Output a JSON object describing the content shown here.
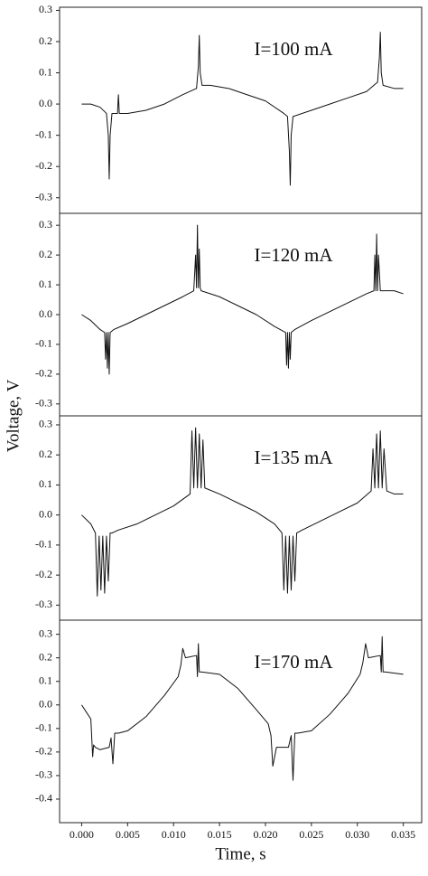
{
  "chart_data": [
    {
      "type": "line",
      "annotation": "I=100 mA",
      "ylabel": "Voltage, V",
      "color": "#111111",
      "xlim": [
        -0.0024,
        0.037
      ],
      "ylim": [
        -0.35,
        0.31
      ],
      "yticks": [
        0.3,
        0.2,
        0.1,
        {
          "value": 0,
          "label": "0.0"
        },
        -0.1,
        -0.2,
        -0.3
      ],
      "x": [
        0,
        0.001,
        0.002,
        0.0027,
        0.0029,
        0.003,
        0.0031,
        0.0033,
        0.0039,
        0.004,
        0.0041,
        0.005,
        0.007,
        0.009,
        0.011,
        0.0125,
        0.0127,
        0.0128,
        0.0129,
        0.0131,
        0.014,
        0.016,
        0.018,
        0.02,
        0.022,
        0.0224,
        0.0226,
        0.0227,
        0.0228,
        0.023,
        0.025,
        0.027,
        0.029,
        0.031,
        0.0322,
        0.0324,
        0.0325,
        0.0326,
        0.0328,
        0.034,
        0.035
      ],
      "values": [
        0.0,
        0.0,
        -0.01,
        -0.03,
        -0.1,
        -0.24,
        -0.1,
        -0.03,
        -0.03,
        0.03,
        -0.03,
        -0.03,
        -0.02,
        0.0,
        0.03,
        0.05,
        0.12,
        0.22,
        0.1,
        0.06,
        0.06,
        0.05,
        0.03,
        0.01,
        -0.03,
        -0.04,
        -0.15,
        -0.26,
        -0.1,
        -0.04,
        -0.02,
        0.0,
        0.02,
        0.04,
        0.07,
        0.15,
        0.23,
        0.1,
        0.06,
        0.05,
        0.05
      ]
    },
    {
      "type": "line",
      "annotation": "I=120 mA",
      "color": "#111111",
      "xlim": [
        -0.0024,
        0.037
      ],
      "ylim": [
        -0.34,
        0.34
      ],
      "yticks": [
        0.3,
        0.2,
        0.1,
        {
          "value": 0,
          "label": "0.0"
        },
        -0.1,
        -0.2,
        -0.3
      ],
      "x": [
        0,
        0.001,
        0.002,
        0.0025,
        0.0026,
        0.0027,
        0.0028,
        0.0029,
        0.003,
        0.0031,
        0.0035,
        0.005,
        0.007,
        0.009,
        0.011,
        0.0122,
        0.0124,
        0.0125,
        0.0126,
        0.0127,
        0.0128,
        0.0129,
        0.013,
        0.015,
        0.017,
        0.019,
        0.021,
        0.0222,
        0.0223,
        0.0224,
        0.0225,
        0.0226,
        0.0227,
        0.0228,
        0.0232,
        0.025,
        0.027,
        0.029,
        0.031,
        0.0318,
        0.0319,
        0.032,
        0.0321,
        0.0322,
        0.0323,
        0.0325,
        0.034,
        0.035
      ],
      "values": [
        0.0,
        -0.02,
        -0.05,
        -0.06,
        -0.15,
        -0.06,
        -0.18,
        -0.06,
        -0.2,
        -0.06,
        -0.05,
        -0.03,
        0.0,
        0.03,
        0.06,
        0.08,
        0.2,
        0.09,
        0.3,
        0.09,
        0.22,
        0.09,
        0.08,
        0.06,
        0.03,
        0.0,
        -0.04,
        -0.06,
        -0.17,
        -0.06,
        -0.18,
        -0.06,
        -0.15,
        -0.06,
        -0.05,
        -0.02,
        0.01,
        0.04,
        0.07,
        0.08,
        0.2,
        0.08,
        0.27,
        0.08,
        0.2,
        0.08,
        0.08,
        0.07
      ]
    },
    {
      "type": "line",
      "annotation": "I=135 mA",
      "color": "#111111",
      "xlim": [
        -0.0024,
        0.037
      ],
      "ylim": [
        -0.35,
        0.33
      ],
      "yticks": [
        0.3,
        0.2,
        0.1,
        {
          "value": 0,
          "label": "0.0"
        },
        -0.1,
        -0.2,
        -0.3
      ],
      "x": [
        0,
        0.001,
        0.0015,
        0.0017,
        0.0019,
        0.0021,
        0.0023,
        0.0025,
        0.0027,
        0.0029,
        0.0031,
        0.0033,
        0.004,
        0.006,
        0.008,
        0.01,
        0.0118,
        0.012,
        0.0122,
        0.0124,
        0.0126,
        0.0128,
        0.013,
        0.0132,
        0.0134,
        0.015,
        0.017,
        0.019,
        0.021,
        0.0218,
        0.022,
        0.0222,
        0.0224,
        0.0226,
        0.0228,
        0.023,
        0.0232,
        0.0234,
        0.024,
        0.026,
        0.028,
        0.03,
        0.0315,
        0.0317,
        0.0319,
        0.0321,
        0.0323,
        0.0325,
        0.0327,
        0.0329,
        0.0332,
        0.034,
        0.035
      ],
      "values": [
        0.0,
        -0.03,
        -0.06,
        -0.27,
        -0.07,
        -0.25,
        -0.07,
        -0.26,
        -0.07,
        -0.22,
        -0.06,
        -0.06,
        -0.05,
        -0.03,
        0.0,
        0.03,
        0.07,
        0.28,
        0.09,
        0.29,
        0.09,
        0.27,
        0.09,
        0.25,
        0.09,
        0.07,
        0.04,
        0.01,
        -0.03,
        -0.06,
        -0.25,
        -0.07,
        -0.26,
        -0.07,
        -0.25,
        -0.07,
        -0.22,
        -0.06,
        -0.05,
        -0.02,
        0.01,
        0.04,
        0.08,
        0.22,
        0.09,
        0.27,
        0.09,
        0.28,
        0.09,
        0.22,
        0.08,
        0.07,
        0.07
      ]
    },
    {
      "type": "line",
      "annotation": "I=170 mA",
      "xlabel": "Time, s",
      "color": "#111111",
      "xlim": [
        -0.0024,
        0.037
      ],
      "ylim": [
        -0.5,
        0.36
      ],
      "yticks": [
        0.3,
        0.2,
        0.1,
        {
          "value": 0,
          "label": "0.0"
        },
        -0.1,
        -0.2,
        -0.3,
        -0.4
      ],
      "xticks": [
        {
          "value": 0,
          "label": "0.000"
        },
        {
          "value": 0.005,
          "label": "0.005"
        },
        {
          "value": 0.01,
          "label": "0.010"
        },
        {
          "value": 0.015,
          "label": "0.015"
        },
        {
          "value": 0.02,
          "label": "0.020"
        },
        {
          "value": 0.025,
          "label": "0.025"
        },
        {
          "value": 0.03,
          "label": "0.030"
        },
        {
          "value": 0.035,
          "label": "0.035"
        }
      ],
      "x": [
        0,
        0.0005,
        0.001,
        0.0012,
        0.0013,
        0.0015,
        0.002,
        0.003,
        0.0032,
        0.0034,
        0.0036,
        0.004,
        0.005,
        0.007,
        0.009,
        0.0105,
        0.0108,
        0.011,
        0.0113,
        0.0125,
        0.0126,
        0.0127,
        0.0128,
        0.013,
        0.015,
        0.017,
        0.019,
        0.0203,
        0.0206,
        0.0208,
        0.0212,
        0.0225,
        0.0228,
        0.023,
        0.0232,
        0.0235,
        0.025,
        0.027,
        0.029,
        0.0303,
        0.0306,
        0.0309,
        0.0312,
        0.0325,
        0.0326,
        0.0327,
        0.0328,
        0.033,
        0.035
      ],
      "values": [
        0.0,
        -0.03,
        -0.06,
        -0.22,
        -0.17,
        -0.18,
        -0.19,
        -0.18,
        -0.14,
        -0.25,
        -0.12,
        -0.12,
        -0.11,
        -0.05,
        0.04,
        0.12,
        0.17,
        0.24,
        0.2,
        0.21,
        0.12,
        0.26,
        0.14,
        0.14,
        0.13,
        0.07,
        -0.02,
        -0.08,
        -0.13,
        -0.26,
        -0.18,
        -0.18,
        -0.13,
        -0.32,
        -0.12,
        -0.12,
        -0.11,
        -0.04,
        0.05,
        0.13,
        0.18,
        0.26,
        0.2,
        0.21,
        0.14,
        0.29,
        0.14,
        0.14,
        0.13
      ]
    }
  ]
}
